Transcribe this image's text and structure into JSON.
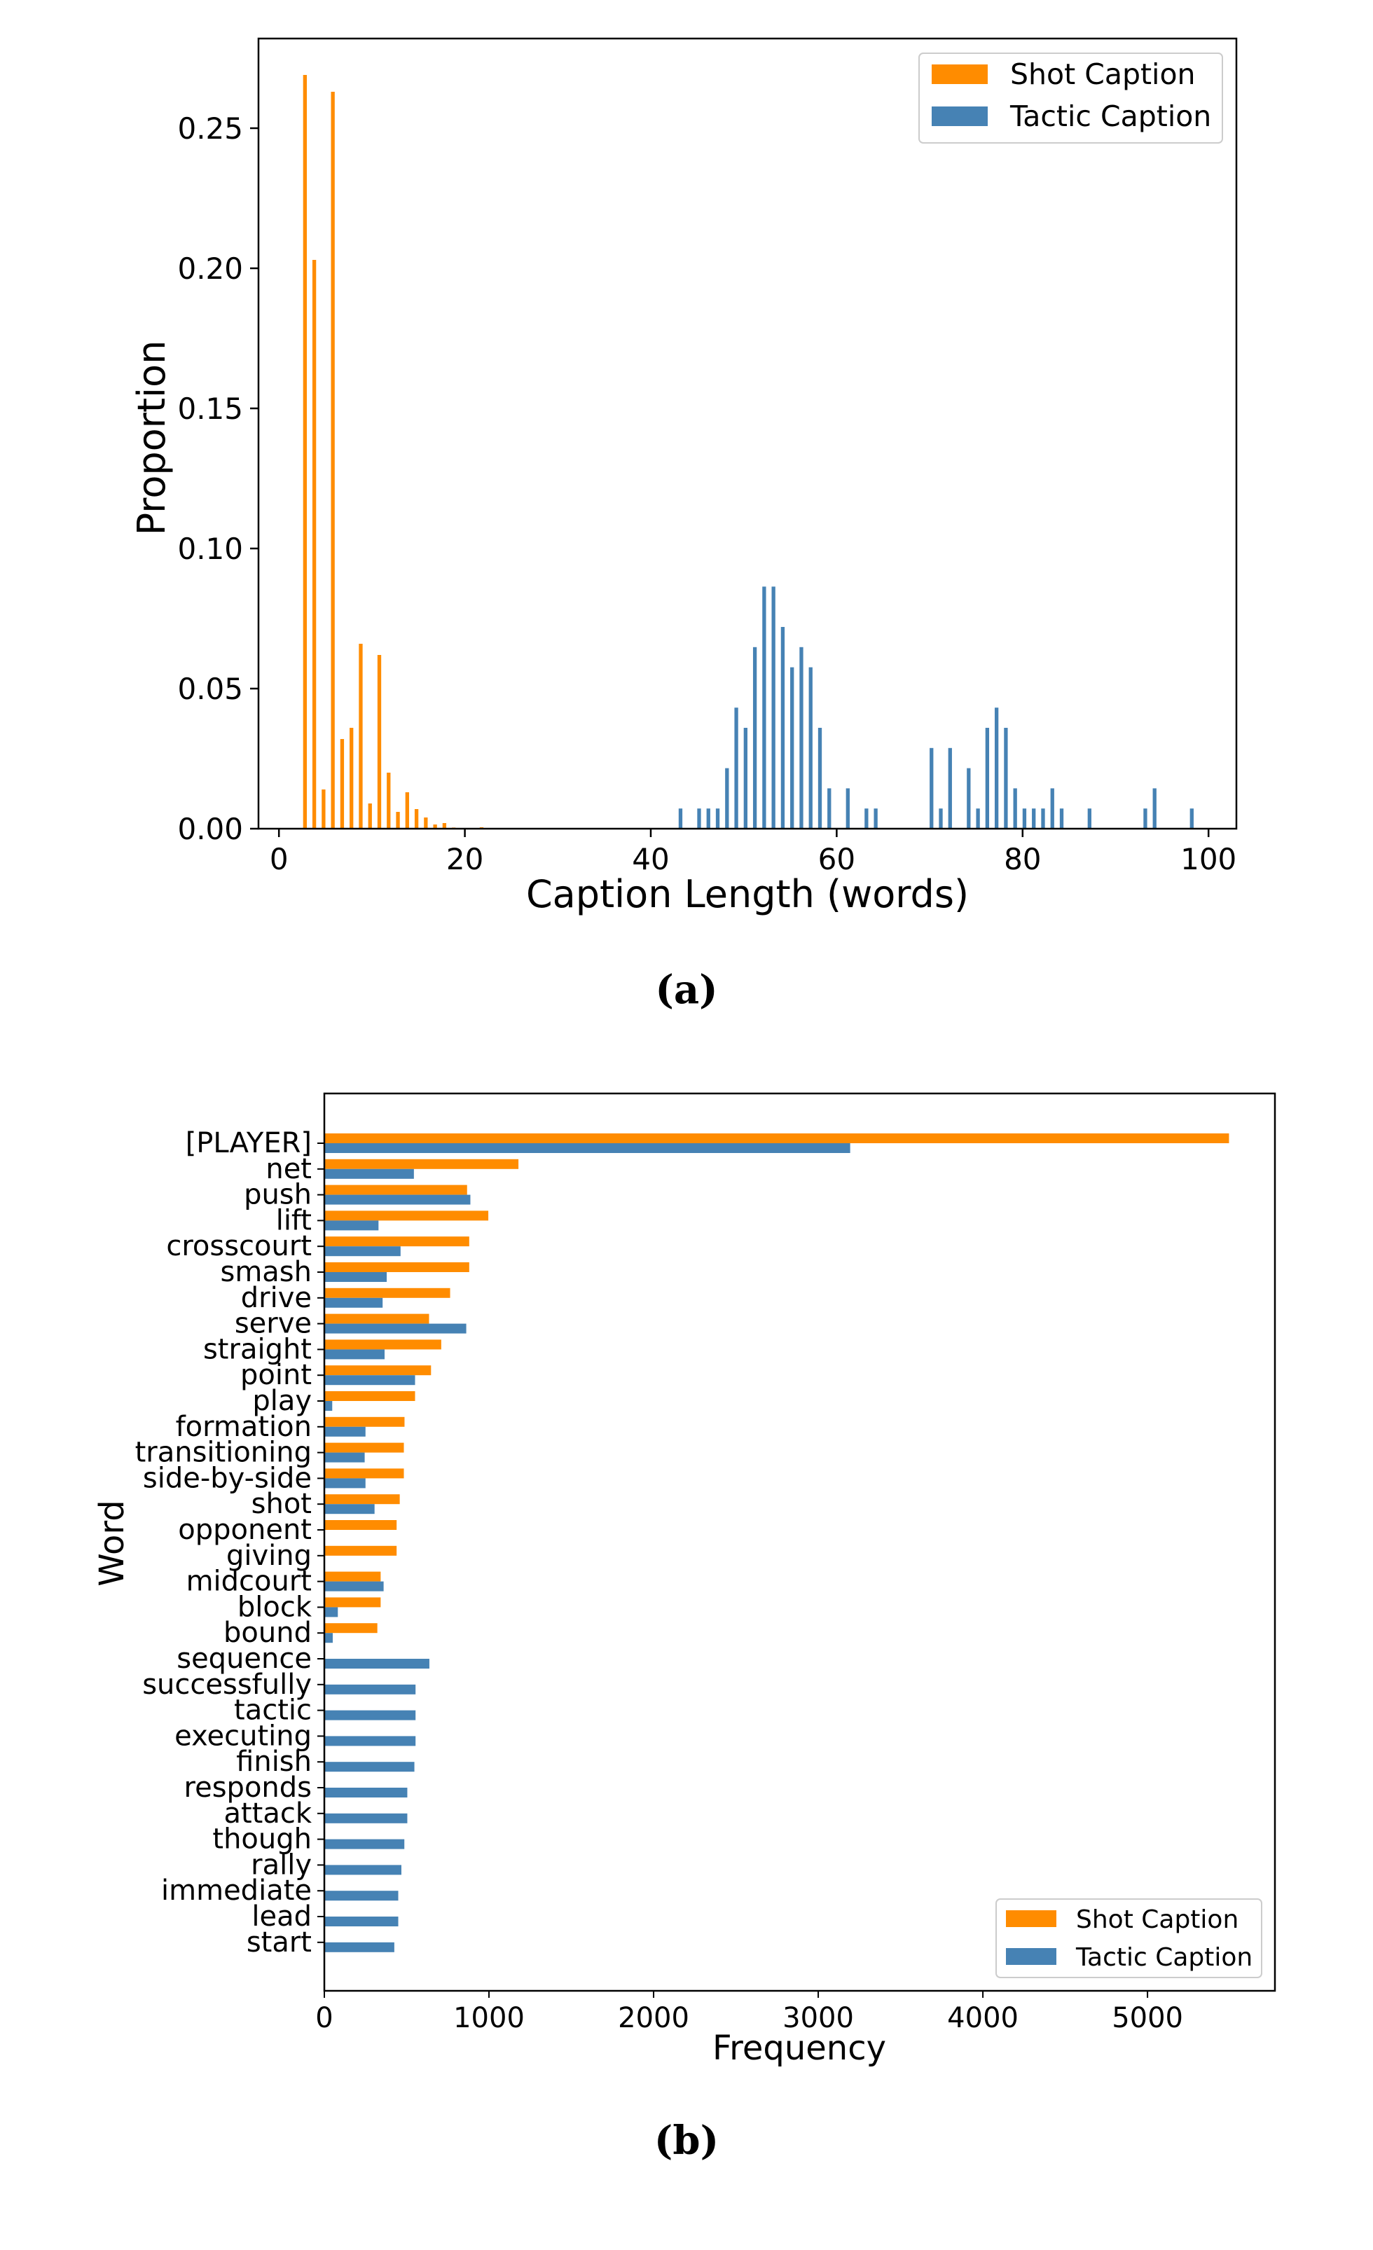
{
  "colors": {
    "shot": "#ff8c00",
    "tactic": "#4682b4"
  },
  "chart_data": [
    {
      "type": "bar",
      "caption": "(a)",
      "xlabel": "Caption Length (words)",
      "ylabel": "Proportion",
      "xlim": [
        -2.2,
        103
      ],
      "ylim": [
        0,
        0.282
      ],
      "xticks": [
        0,
        20,
        40,
        60,
        80,
        100
      ],
      "xtick_labels": [
        "0",
        "20",
        "40",
        "60",
        "80",
        "100"
      ],
      "yticks": [
        0,
        0.05,
        0.1,
        0.15,
        0.2,
        0.25
      ],
      "ytick_labels": [
        "0.00",
        "0.05",
        "0.10",
        "0.15",
        "0.20",
        "0.25"
      ],
      "legend": {
        "placement": "top-right",
        "entries": [
          "Shot Caption",
          "Tactic Caption"
        ]
      },
      "series": [
        {
          "name": "Shot Caption",
          "x": [
            3,
            4,
            5,
            6,
            7,
            8,
            9,
            10,
            11,
            12,
            13,
            14,
            15,
            16,
            17,
            18,
            19,
            22
          ],
          "values": [
            0.269,
            0.203,
            0.014,
            0.263,
            0.032,
            0.036,
            0.066,
            0.009,
            0.062,
            0.02,
            0.006,
            0.013,
            0.007,
            0.004,
            0.0015,
            0.002,
            0.0004,
            0.0005
          ]
        },
        {
          "name": "Tactic Caption",
          "x": [
            43,
            45,
            46,
            47,
            48,
            49,
            50,
            51,
            52,
            53,
            54,
            55,
            56,
            57,
            58,
            59,
            61,
            63,
            64,
            70,
            71,
            72,
            74,
            75,
            76,
            77,
            78,
            79,
            80,
            81,
            82,
            83,
            84,
            87,
            93,
            94,
            98
          ],
          "values": [
            0.0072,
            0.0072,
            0.0072,
            0.0072,
            0.0216,
            0.0432,
            0.036,
            0.0648,
            0.0864,
            0.0864,
            0.072,
            0.0576,
            0.0648,
            0.0576,
            0.036,
            0.0144,
            0.0144,
            0.0072,
            0.0072,
            0.0288,
            0.0072,
            0.0288,
            0.0216,
            0.0072,
            0.036,
            0.0432,
            0.036,
            0.0144,
            0.0072,
            0.0072,
            0.0072,
            0.0144,
            0.0072,
            0.0072,
            0.0072,
            0.0144,
            0.0072
          ]
        }
      ]
    },
    {
      "type": "bar",
      "orientation": "horizontal",
      "caption": "(b)",
      "xlabel": "Frequency",
      "ylabel": "Word",
      "xlim": [
        0,
        5774
      ],
      "xticks": [
        0,
        1000,
        2000,
        3000,
        4000,
        5000
      ],
      "xtick_labels": [
        "0",
        "1000",
        "2000",
        "3000",
        "4000",
        "5000"
      ],
      "legend": {
        "placement": "bottom-right",
        "entries": [
          "Shot Caption",
          "Tactic Caption"
        ]
      },
      "categories": [
        "[PLAYER]",
        "net",
        "push",
        "lift",
        "crosscourt",
        "smash",
        "drive",
        "serve",
        "straight",
        "point",
        "play",
        "formation",
        "transitioning",
        "side-by-side",
        "shot",
        "opponent",
        "giving",
        "midcourt",
        "block",
        "bound",
        "sequence",
        "successfully",
        "tactic",
        "executing",
        "finish",
        "responds",
        "attack",
        "though",
        "rally",
        "immediate",
        "lead",
        "start"
      ],
      "series": [
        {
          "name": "Shot Caption",
          "values": [
            5495,
            1179,
            867,
            996,
            880,
            880,
            764,
            636,
            710,
            648,
            551,
            487,
            483,
            483,
            458,
            439,
            439,
            342,
            342,
            322,
            0,
            0,
            0,
            0,
            0,
            0,
            0,
            0,
            0,
            0,
            0,
            0
          ]
        },
        {
          "name": "Tactic Caption",
          "values": [
            3194,
            544,
            887,
            329,
            463,
            379,
            354,
            862,
            366,
            551,
            48,
            250,
            245,
            250,
            305,
            0,
            0,
            360,
            82,
            51,
            638,
            554,
            554,
            554,
            547,
            504,
            504,
            486,
            468,
            449,
            449,
            425
          ]
        }
      ]
    }
  ]
}
